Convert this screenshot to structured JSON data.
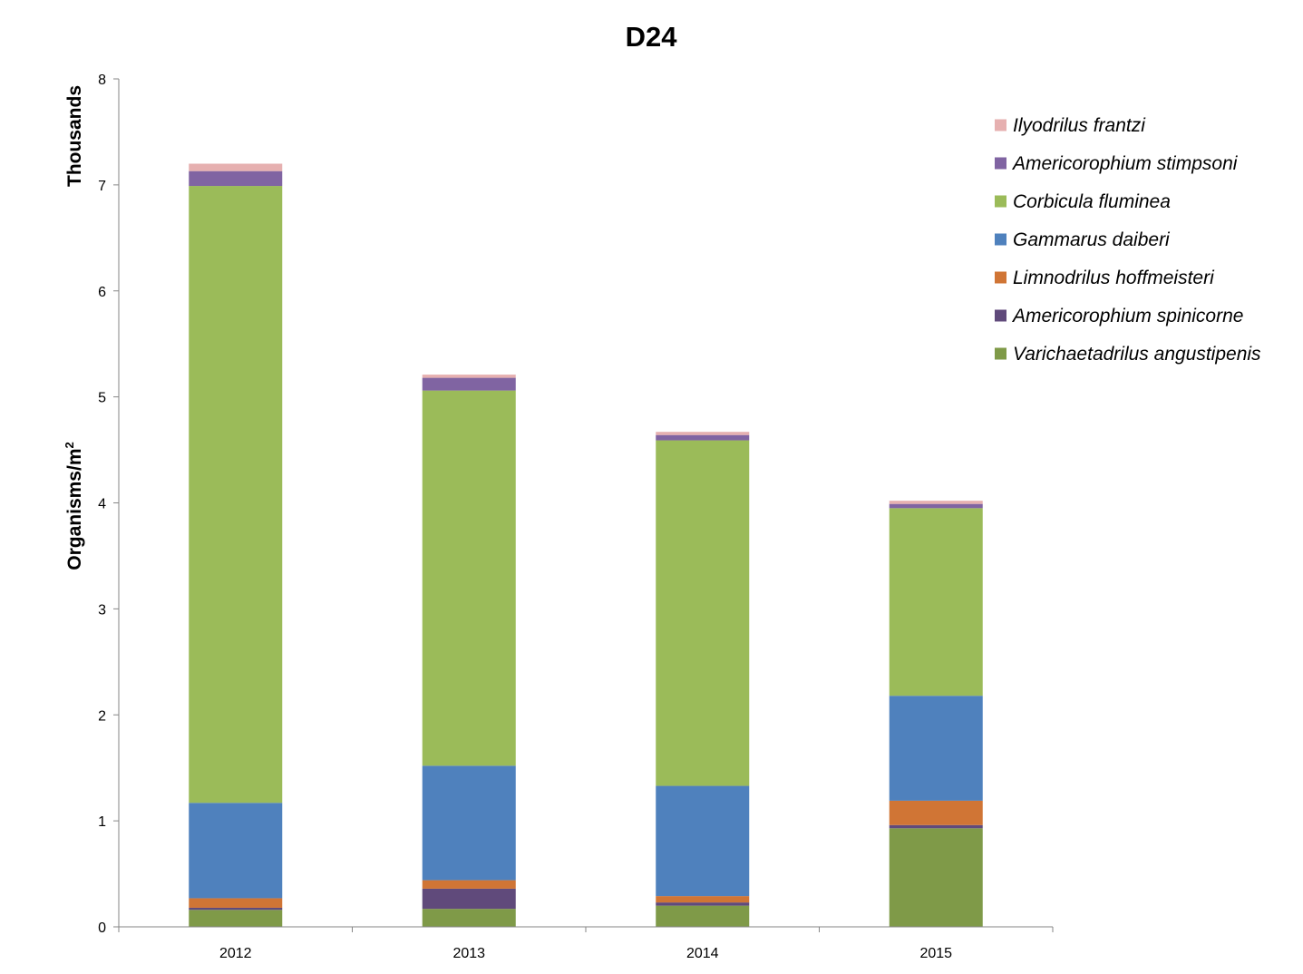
{
  "chart_data": {
    "type": "bar",
    "stacked": true,
    "title": "D24",
    "xlabel": "",
    "ylabel": "Organisms/m",
    "ylabel_superscript": "2",
    "ylabel_units": "Thousands",
    "categories": [
      "2012",
      "2013",
      "2014",
      "2015"
    ],
    "ylim": [
      0,
      8
    ],
    "yticks": [
      0,
      1,
      2,
      3,
      4,
      5,
      6,
      7,
      8
    ],
    "grid": false,
    "legend_position": "top-right",
    "series": [
      {
        "name": "Varichaetadrilus angustipenis",
        "color": "#7f9a48",
        "values": [
          0.16,
          0.17,
          0.2,
          0.93
        ]
      },
      {
        "name": "Americorophium spinicorne",
        "color": "#604a7b",
        "values": [
          0.02,
          0.19,
          0.03,
          0.03
        ]
      },
      {
        "name": "Limnodrilus hoffmeisteri",
        "color": "#d07535",
        "values": [
          0.09,
          0.08,
          0.06,
          0.23
        ]
      },
      {
        "name": "Gammarus daiberi",
        "color": "#4f81bd",
        "values": [
          0.9,
          1.08,
          1.04,
          0.99
        ]
      },
      {
        "name": "Corbicula fluminea",
        "color": "#9bbb59",
        "values": [
          5.82,
          3.54,
          3.26,
          1.77
        ]
      },
      {
        "name": "Americorophium stimpsoni",
        "color": "#8064a2",
        "values": [
          0.14,
          0.12,
          0.05,
          0.04
        ]
      },
      {
        "name": "Ilyodrilus frantzi",
        "color": "#e6b0b0",
        "values": [
          0.07,
          0.03,
          0.03,
          0.03
        ]
      }
    ]
  }
}
